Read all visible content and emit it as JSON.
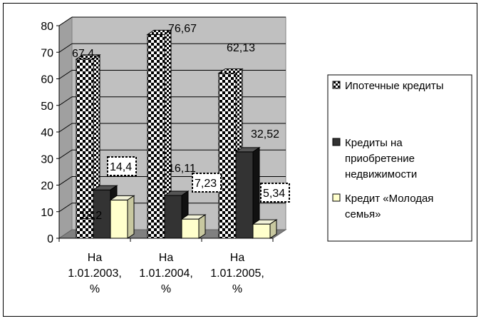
{
  "chart_data": {
    "type": "bar",
    "categories": [
      [
        "На",
        "1.01.2003,",
        "%"
      ],
      [
        "На",
        "1.01.2004,",
        "%"
      ],
      [
        "На",
        "1.01.2005,",
        "%"
      ]
    ],
    "ylim": [
      0,
      80
    ],
    "yticks": [
      0,
      10,
      20,
      30,
      40,
      50,
      60,
      70,
      80
    ],
    "grid": true,
    "legend_position": "right",
    "series": [
      {
        "name": "Ипотечные кредиты",
        "legend_lines": [
          "Ипотечные кредиты"
        ],
        "pattern": "checker",
        "values": [
          67.4,
          76.67,
          62.13
        ],
        "labels": [
          "67,4",
          "76,67",
          "62,13"
        ]
      },
      {
        "name": "Кредиты на приобретение недвижимости",
        "legend_lines": [
          "Кредиты на",
          "приобретение",
          "недвижимости"
        ],
        "color": "#333333",
        "values": [
          18.2,
          16.11,
          32.52
        ],
        "labels": [
          "18,2",
          "16,11",
          "32,52"
        ]
      },
      {
        "name": "Кредит «Молодая семья»",
        "legend_lines": [
          "Кредит «Молодая",
          "семья»"
        ],
        "color": "#ffffcc",
        "values": [
          14.4,
          7.23,
          5.34
        ],
        "labels": [
          "14,4",
          "7,23",
          "5,34"
        ]
      }
    ]
  }
}
